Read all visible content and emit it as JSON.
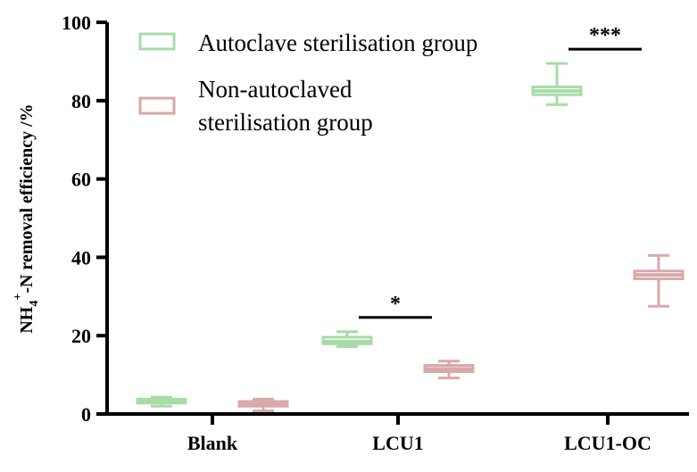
{
  "chart_data": {
    "type": "box",
    "ylabel_main": "NH",
    "ylabel_sub": "4",
    "ylabel_sup": "+",
    "ylabel_rest": "-N removal efficiency /%",
    "ylim": [
      0,
      100
    ],
    "yticks": [
      0,
      20,
      40,
      60,
      80,
      100
    ],
    "categories": [
      "Blank",
      "LCU1",
      "LCU1-OC"
    ],
    "series": [
      {
        "name": "Autoclave sterilisation group",
        "color": "#a8dba8",
        "boxes": [
          {
            "min": 2.0,
            "q1": 2.8,
            "median": 3.2,
            "q3": 3.8,
            "max": 4.3
          },
          {
            "min": 17.2,
            "q1": 17.9,
            "median": 18.5,
            "q3": 19.6,
            "max": 21.0
          },
          {
            "min": 79.0,
            "q1": 81.5,
            "median": 82.5,
            "q3": 83.5,
            "max": 89.5
          }
        ]
      },
      {
        "name": "Non-autoclaved sterilisation group",
        "color": "#d9a9a9",
        "legend_lines": [
          "Non-autoclaved",
          "sterilisation group"
        ],
        "boxes": [
          {
            "min": 0.8,
            "q1": 2.0,
            "median": 2.6,
            "q3": 3.2,
            "max": 3.8
          },
          {
            "min": 9.2,
            "q1": 10.8,
            "median": 11.5,
            "q3": 12.4,
            "max": 13.5
          },
          {
            "min": 27.5,
            "q1": 34.5,
            "median": 35.5,
            "q3": 36.5,
            "max": 40.5
          }
        ]
      }
    ],
    "significance": [
      {
        "category": "LCU1",
        "label": "*"
      },
      {
        "category": "LCU1-OC",
        "label": "***"
      }
    ],
    "legend_position": "top-left"
  }
}
